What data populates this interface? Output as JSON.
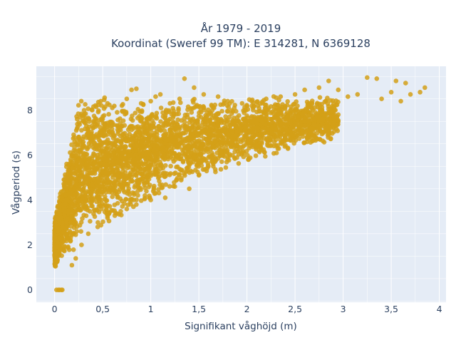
{
  "chart_data": {
    "type": "scatter",
    "title_line1": "År 1979 - 2019",
    "title_line2": "Koordinat (Sweref 99 TM): E 314281, N 6369128",
    "xlabel": "Signifikant våghöjd (m)",
    "ylabel": "Vågperiod (s)",
    "xlim": [
      -0.19,
      4.07
    ],
    "ylim": [
      -0.55,
      9.95
    ],
    "x_ticks": [
      {
        "value": 0,
        "label": "0"
      },
      {
        "value": 0.5,
        "label": "0,5"
      },
      {
        "value": 1,
        "label": "1"
      },
      {
        "value": 1.5,
        "label": "1,5"
      },
      {
        "value": 2,
        "label": "2"
      },
      {
        "value": 2.5,
        "label": "2,5"
      },
      {
        "value": 3,
        "label": "3"
      },
      {
        "value": 3.5,
        "label": "3,5"
      },
      {
        "value": 4,
        "label": "4"
      }
    ],
    "y_ticks": [
      {
        "value": 0,
        "label": "0"
      },
      {
        "value": 2,
        "label": "2"
      },
      {
        "value": 4,
        "label": "4"
      },
      {
        "value": 6,
        "label": "6"
      },
      {
        "value": 8,
        "label": "8"
      }
    ],
    "grid": true,
    "legend": false,
    "plot_bg_color": "#e5ecf6",
    "grid_color": "#ffffff",
    "marker_color": "#d4a017",
    "point_count_estimate": "many thousands (dense cloud)",
    "series": [
      {
        "points": [
          [
            0.02,
            0.0
          ],
          [
            0.04,
            0.0
          ],
          [
            0.05,
            0.0
          ],
          [
            0.07,
            0.0
          ],
          [
            0.08,
            0.0
          ],
          [
            0.0,
            1.55
          ],
          [
            0.01,
            1.7
          ],
          [
            0.02,
            1.9
          ],
          [
            0.03,
            2.1
          ],
          [
            0.03,
            2.6
          ],
          [
            0.05,
            3.0
          ],
          [
            0.07,
            3.2
          ],
          [
            0.08,
            2.8
          ],
          [
            0.1,
            2.2
          ],
          [
            0.12,
            2.5
          ],
          [
            0.1,
            3.5
          ],
          [
            0.12,
            4.0
          ],
          [
            0.1,
            4.6
          ],
          [
            0.13,
            5.0
          ],
          [
            0.15,
            5.6
          ],
          [
            0.18,
            6.0
          ],
          [
            0.2,
            6.2
          ],
          [
            0.22,
            6.5
          ],
          [
            0.25,
            6.8
          ],
          [
            0.28,
            7.1
          ],
          [
            0.3,
            7.75
          ],
          [
            0.33,
            7.3
          ],
          [
            0.35,
            7.0
          ],
          [
            0.4,
            7.2
          ],
          [
            0.45,
            7.4
          ],
          [
            0.5,
            7.6
          ],
          [
            0.48,
            8.4
          ],
          [
            0.52,
            8.55
          ],
          [
            0.55,
            8.3
          ],
          [
            0.6,
            8.1
          ],
          [
            0.65,
            7.9
          ],
          [
            0.7,
            8.2
          ],
          [
            0.75,
            8.5
          ],
          [
            0.8,
            8.9
          ],
          [
            0.85,
            8.95
          ],
          [
            0.9,
            8.3
          ],
          [
            1.0,
            8.4
          ],
          [
            1.05,
            8.6
          ],
          [
            1.1,
            8.7
          ],
          [
            1.2,
            8.3
          ],
          [
            1.3,
            8.5
          ],
          [
            1.35,
            9.4
          ],
          [
            1.45,
            9.0
          ],
          [
            1.55,
            8.7
          ],
          [
            1.7,
            8.6
          ],
          [
            1.8,
            8.4
          ],
          [
            1.95,
            8.3
          ],
          [
            2.05,
            8.4
          ],
          [
            2.2,
            8.5
          ],
          [
            2.35,
            8.6
          ],
          [
            2.5,
            8.7
          ],
          [
            2.6,
            8.9
          ],
          [
            2.75,
            9.0
          ],
          [
            2.85,
            9.3
          ],
          [
            2.95,
            8.9
          ],
          [
            3.05,
            8.6
          ],
          [
            3.15,
            8.7
          ],
          [
            3.25,
            9.45
          ],
          [
            3.35,
            9.4
          ],
          [
            3.4,
            8.5
          ],
          [
            3.5,
            8.8
          ],
          [
            3.55,
            9.3
          ],
          [
            3.6,
            8.4
          ],
          [
            3.65,
            9.2
          ],
          [
            3.7,
            8.7
          ],
          [
            3.8,
            8.8
          ],
          [
            3.85,
            9.0
          ],
          [
            0.18,
            1.1
          ],
          [
            0.22,
            1.4
          ],
          [
            0.28,
            2.0
          ],
          [
            0.35,
            2.5
          ],
          [
            0.45,
            3.0
          ],
          [
            0.55,
            3.2
          ],
          [
            0.65,
            3.4
          ],
          [
            0.75,
            3.6
          ],
          [
            0.85,
            3.8
          ],
          [
            1.0,
            4.0
          ],
          [
            1.05,
            4.3
          ],
          [
            1.15,
            4.1
          ],
          [
            1.25,
            4.6
          ],
          [
            1.4,
            4.5
          ],
          [
            1.5,
            5.1
          ],
          [
            1.65,
            5.5
          ],
          [
            1.8,
            5.8
          ],
          [
            1.95,
            6.1
          ],
          [
            2.1,
            6.4
          ],
          [
            2.25,
            6.7
          ],
          [
            2.45,
            7.0
          ],
          [
            2.6,
            7.3
          ],
          [
            2.75,
            7.5
          ],
          [
            2.85,
            7.0
          ],
          [
            2.95,
            7.8
          ]
        ]
      }
    ]
  }
}
